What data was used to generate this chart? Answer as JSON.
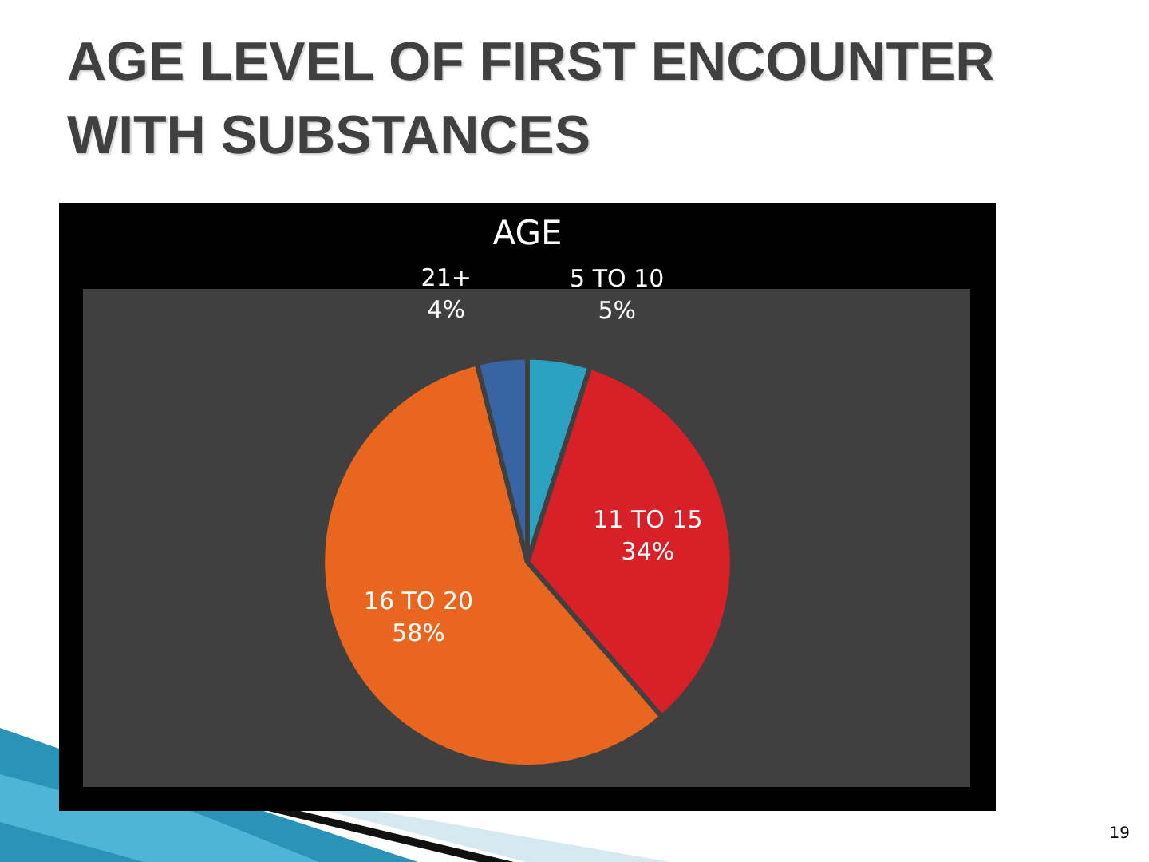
{
  "chart_data": {
    "type": "pie",
    "title": "AGE LEVEL OF FIRST ENCOUNTER WITH SUBSTANCES",
    "subtitle": "AGE",
    "categories": [
      "5 TO 10",
      "11 TO 15",
      "16 TO 20",
      "21+"
    ],
    "values": [
      5,
      34,
      58,
      4
    ],
    "colors": [
      "#2ca1c1",
      "#d82028",
      "#e8661f",
      "#3864a4"
    ],
    "value_labels": [
      "5%",
      "34%",
      "58%",
      "4%"
    ],
    "annotations": [
      "19"
    ]
  }
}
